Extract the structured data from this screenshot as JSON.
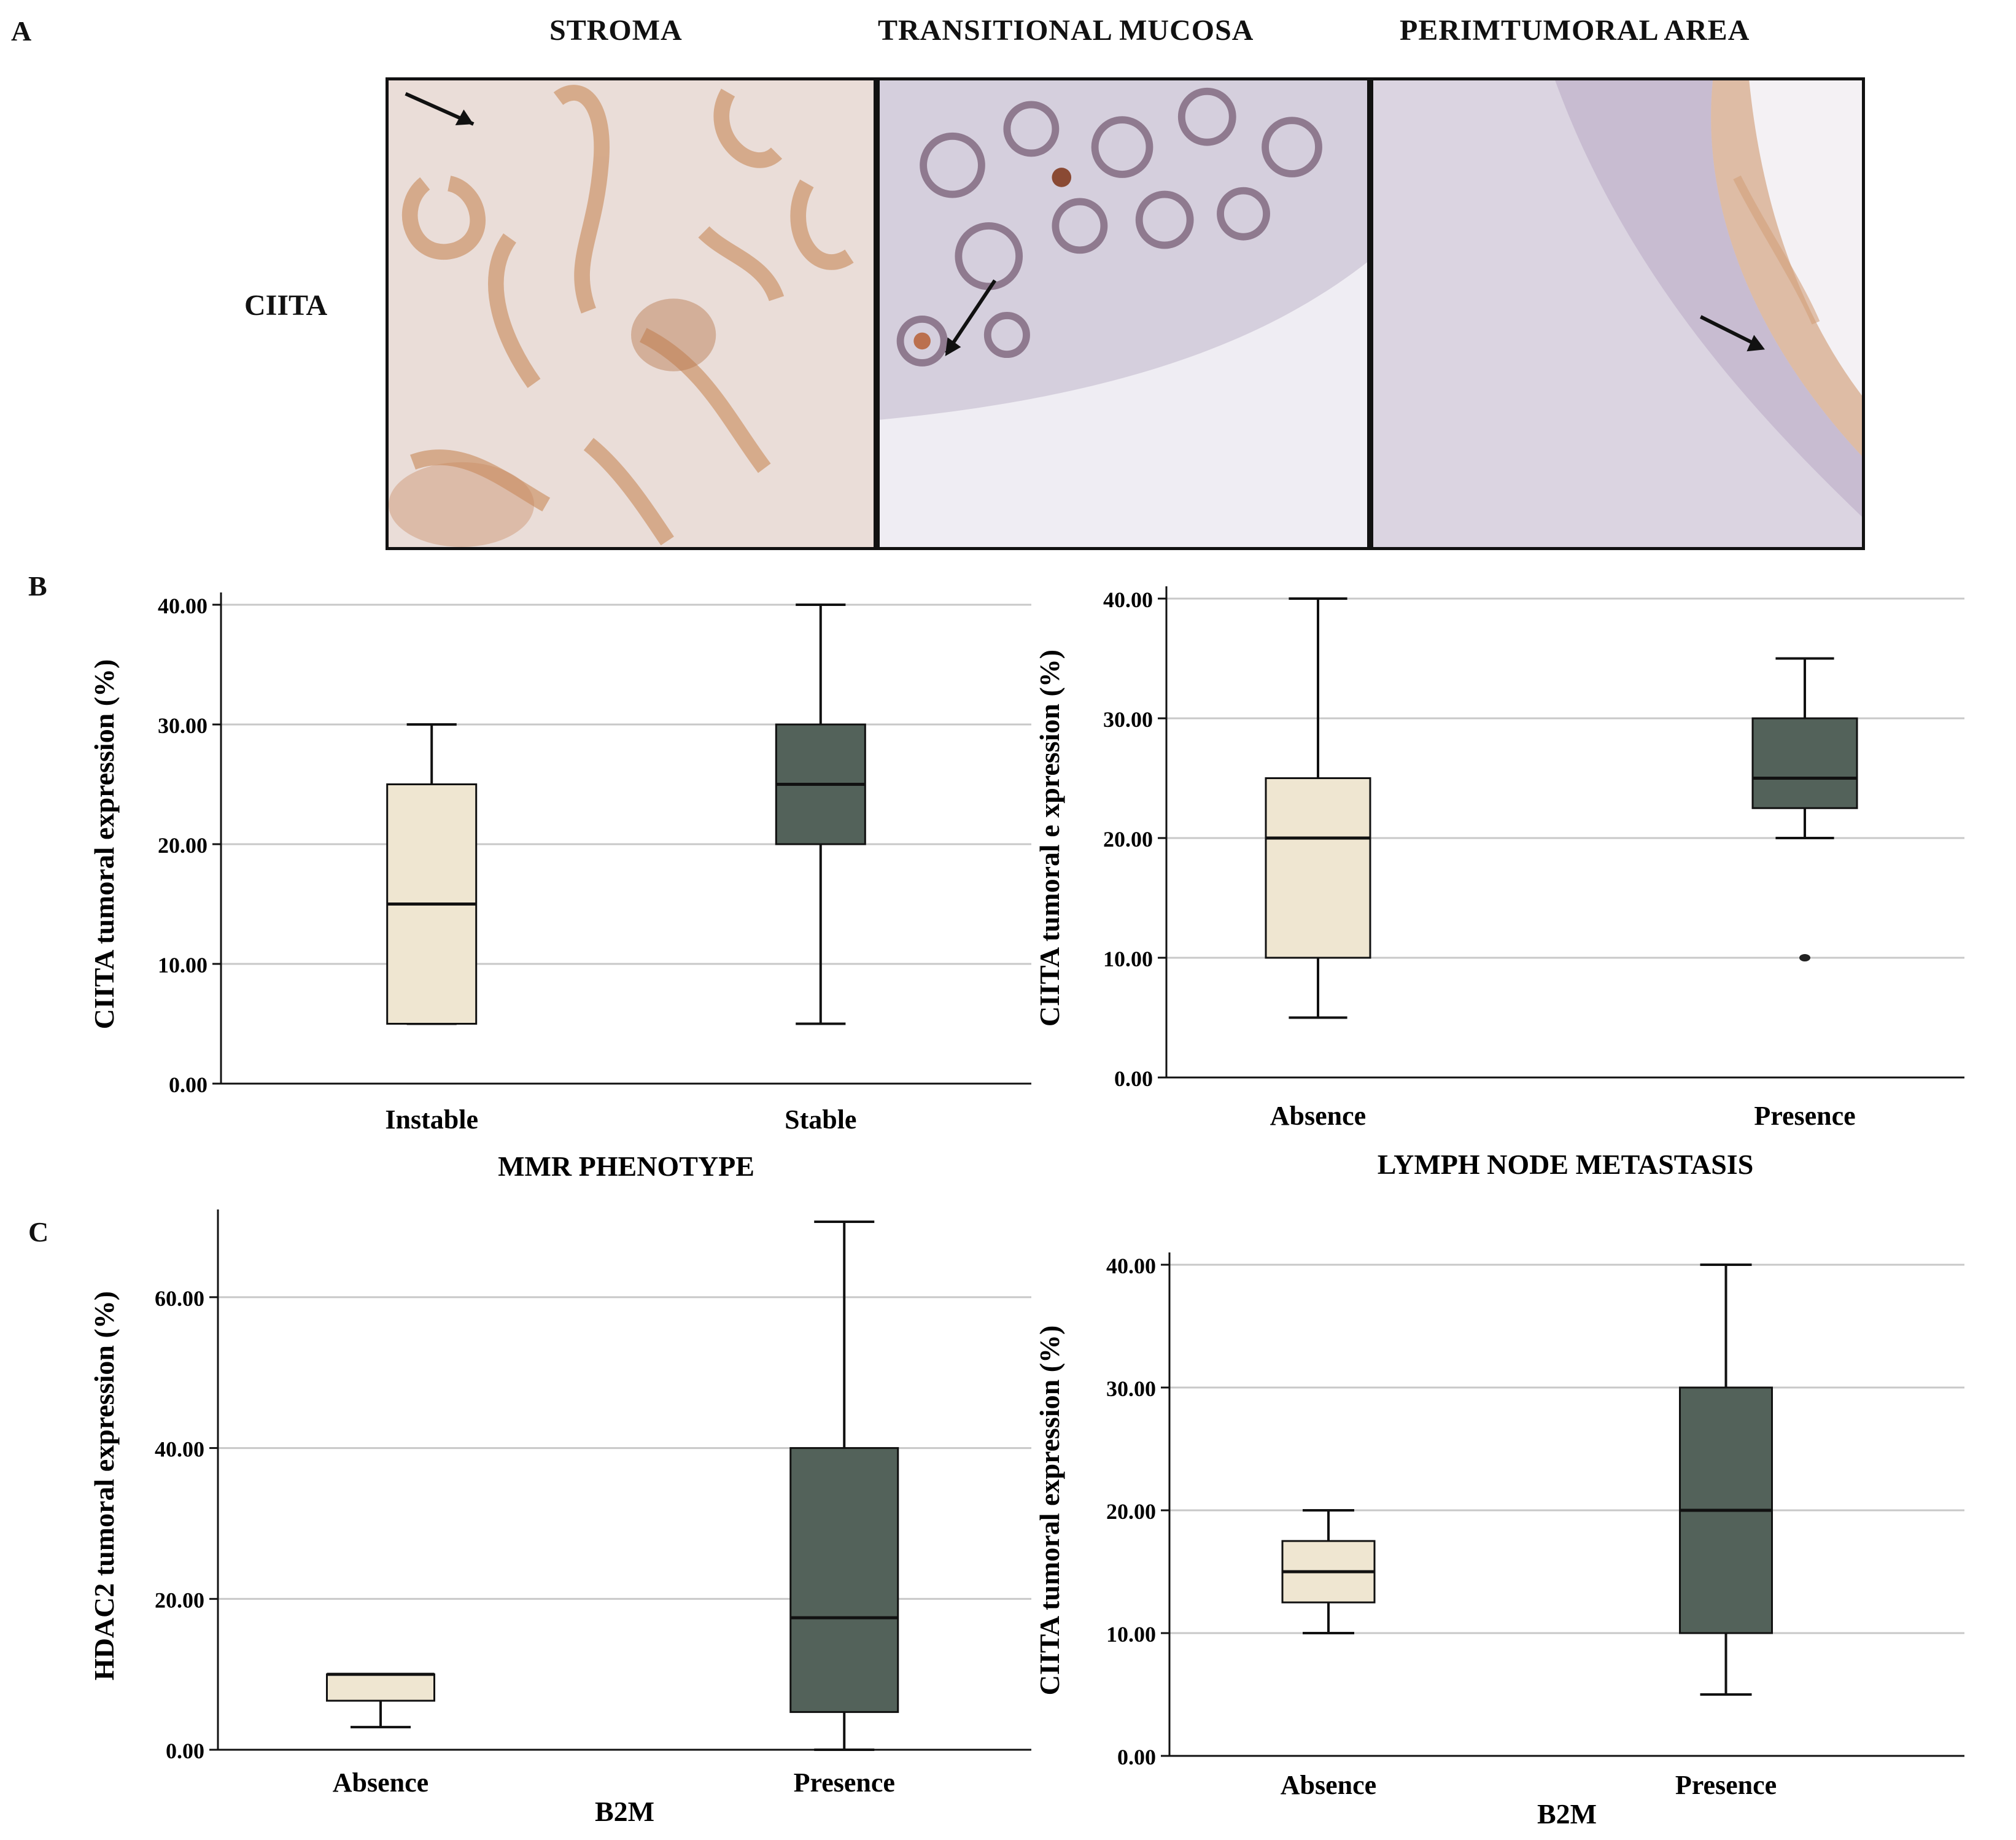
{
  "panel_a": {
    "letter": "A",
    "columns": [
      "STROMA",
      "TRANSITIONAL  MUCOSA",
      "PERIMTUMORAL AREA"
    ],
    "row_label": "CIITA"
  },
  "panel_b": {
    "letter": "B"
  },
  "panel_c": {
    "letter": "C"
  },
  "colors": {
    "absence_fill": "#efe6d1",
    "presence_fill": "#53625a",
    "grid": "#c8c8c8",
    "stroke": "#111111"
  },
  "chart_data": [
    {
      "type": "box",
      "id": "b-left",
      "xlabel": "MMR PHENOTYPE",
      "ylabel": "CIITA  tumoral expression (%)",
      "ylim": [
        0,
        40
      ],
      "yticks": [
        "0.00",
        "10.00",
        "20.00",
        "30.00",
        "40.00"
      ],
      "ytick_values": [
        0,
        10,
        20,
        30,
        40
      ],
      "categories": [
        "Instable",
        "Stable"
      ],
      "boxes": [
        {
          "min": 5,
          "q1": 5,
          "median": 15,
          "q3": 25,
          "max": 30,
          "fill": "#efe6d1"
        },
        {
          "min": 5,
          "q1": 20,
          "median": 25,
          "q3": 30,
          "max": 40,
          "fill": "#53625a"
        }
      ]
    },
    {
      "type": "box",
      "id": "b-right",
      "xlabel": "LYMPH NODE METASTASIS",
      "ylabel": "CIITA tumoral e xpression (%)",
      "ylim": [
        0,
        40
      ],
      "yticks": [
        "0.00",
        "10.00",
        "20.00",
        "30.00",
        "40.00"
      ],
      "ytick_values": [
        0,
        10,
        20,
        30,
        40
      ],
      "categories": [
        "Absence",
        "Presence"
      ],
      "boxes": [
        {
          "min": 5,
          "q1": 10,
          "median": 20,
          "q3": 25,
          "max": 40,
          "fill": "#efe6d1"
        },
        {
          "min": 20,
          "q1": 22.5,
          "median": 25,
          "q3": 30,
          "max": 35,
          "fill": "#53625a",
          "outliers": [
            10
          ]
        }
      ]
    },
    {
      "type": "box",
      "id": "c-left",
      "xlabel": "B2M",
      "ylabel": "HDAC2 tumoral expression (%)",
      "ylim": [
        0,
        70
      ],
      "yticks": [
        "0.00",
        "20.00",
        "40.00",
        "60.00"
      ],
      "ytick_values": [
        0,
        20,
        40,
        60
      ],
      "categories": [
        "Absence",
        "Presence"
      ],
      "boxes": [
        {
          "min": 3,
          "q1": 6.5,
          "median": 10,
          "q3": 10,
          "max": 10,
          "fill": "#efe6d1"
        },
        {
          "min": 0,
          "q1": 5,
          "median": 17.5,
          "q3": 40,
          "max": 70,
          "fill": "#53625a"
        }
      ]
    },
    {
      "type": "box",
      "id": "c-right",
      "xlabel": "B2M",
      "ylabel": "CIITA  tumoral expression (%)",
      "ylim": [
        0,
        40
      ],
      "yticks": [
        "0.00",
        "10.00",
        "20.00",
        "30.00",
        "40.00"
      ],
      "ytick_values": [
        0,
        10,
        20,
        30,
        40
      ],
      "categories": [
        "Absence",
        "Presence"
      ],
      "boxes": [
        {
          "min": 10,
          "q1": 12.5,
          "median": 15,
          "q3": 17.5,
          "max": 20,
          "fill": "#efe6d1"
        },
        {
          "min": 5,
          "q1": 10,
          "median": 20,
          "q3": 30,
          "max": 40,
          "fill": "#53625a"
        }
      ]
    }
  ]
}
